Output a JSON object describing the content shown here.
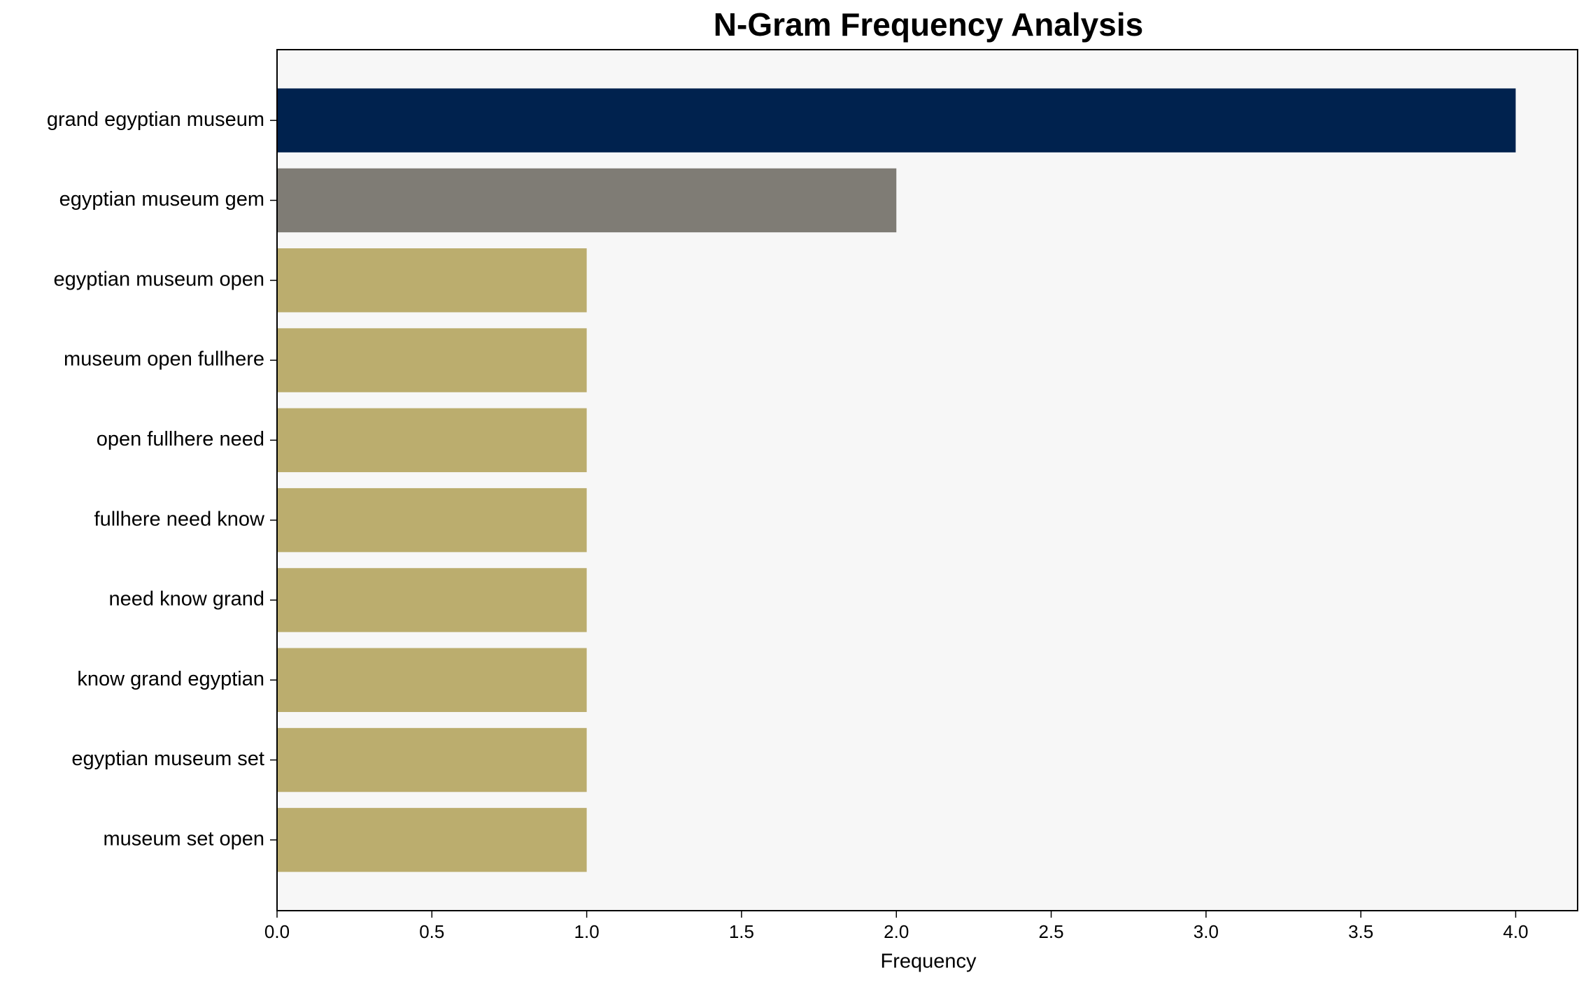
{
  "chart_data": {
    "type": "barh",
    "title": "N-Gram Frequency Analysis",
    "x_label": "Frequency",
    "categories": [
      "grand egyptian museum",
      "egyptian museum gem",
      "egyptian museum open",
      "museum open fullhere",
      "open fullhere need",
      "fullhere need know",
      "need know grand",
      "know grand egyptian",
      "egyptian museum set",
      "museum set open"
    ],
    "values": [
      4,
      2,
      1,
      1,
      1,
      1,
      1,
      1,
      1,
      1
    ],
    "colors": [
      "#00224e",
      "#7f7c75",
      "#bbad6e",
      "#bbad6e",
      "#bbad6e",
      "#bbad6e",
      "#bbad6e",
      "#bbad6e",
      "#bbad6e",
      "#bbad6e"
    ],
    "xlim": [
      0,
      4.2
    ],
    "xticks": [
      {
        "value": 0,
        "label": "0.0"
      },
      0.5,
      {
        "value": 1,
        "label": "1.0"
      },
      1.5,
      {
        "value": 2,
        "label": "2.0"
      },
      2.5,
      {
        "value": 3,
        "label": "3.0"
      },
      3.5,
      {
        "value": 4,
        "label": "4.0"
      }
    ],
    "grid": false
  }
}
